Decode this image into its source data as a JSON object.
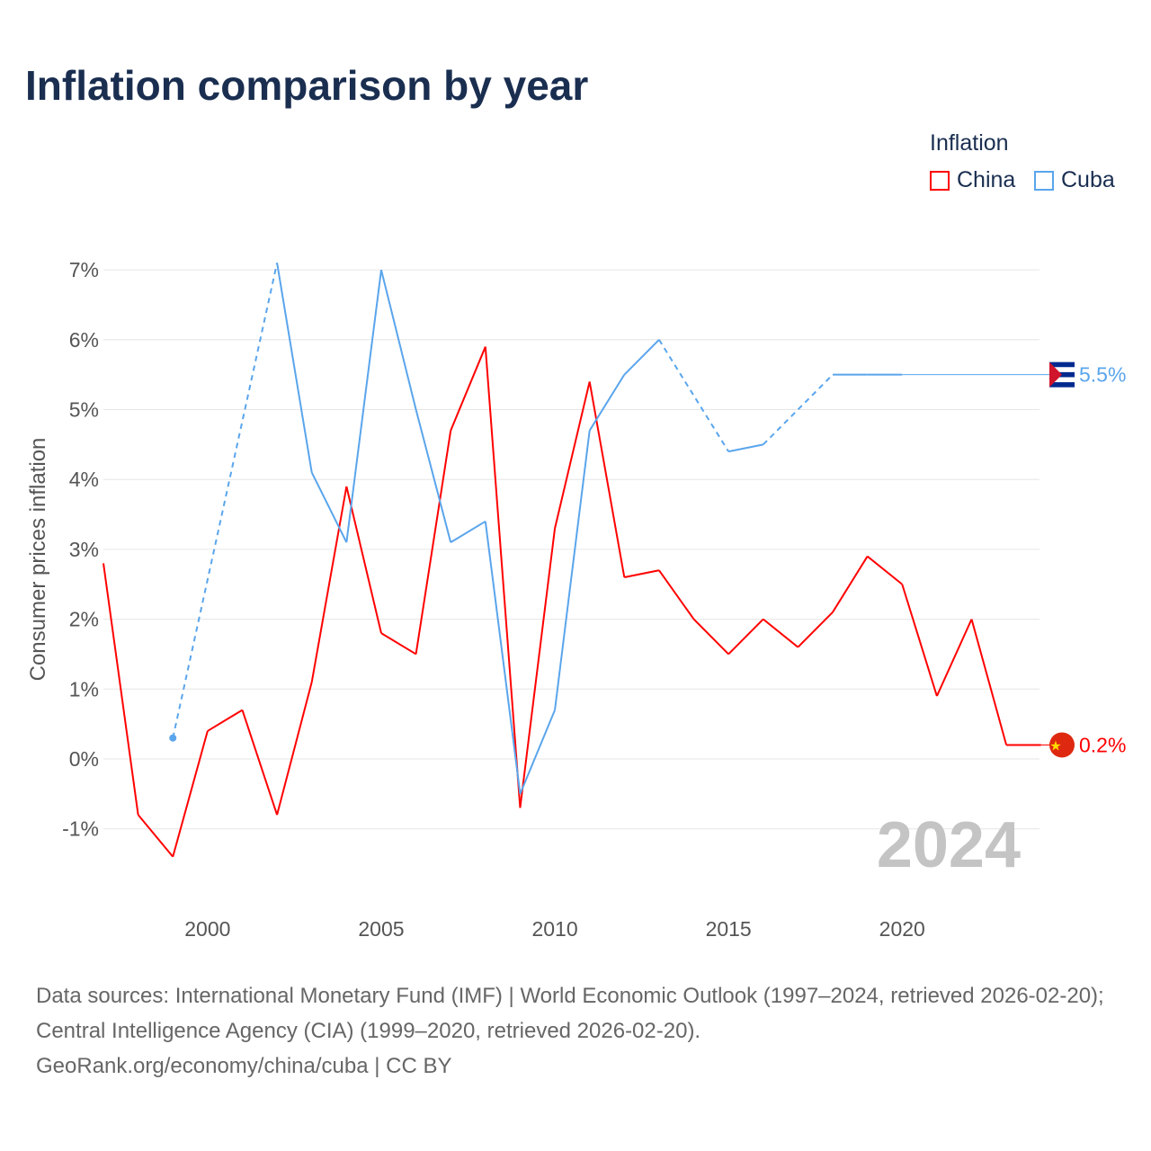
{
  "colors": {
    "China": "#ff0000",
    "Cuba": "#5aa5ec",
    "title": "#1a2e50"
  },
  "chart_data": {
    "type": "line",
    "title": "Inflation comparison by year",
    "xlabel": "",
    "ylabel": "Consumer prices inflation",
    "legend_title": "Inflation",
    "legend_position": "top-right",
    "year_label": "2024",
    "x": [
      1997,
      1998,
      1999,
      2000,
      2001,
      2002,
      2003,
      2004,
      2005,
      2006,
      2007,
      2008,
      2009,
      2010,
      2011,
      2012,
      2013,
      2014,
      2015,
      2016,
      2017,
      2018,
      2019,
      2020,
      2021,
      2022,
      2023,
      2024
    ],
    "series": [
      {
        "name": "China",
        "end_label": "0.2%",
        "values": [
          2.8,
          -0.8,
          -1.4,
          0.4,
          0.7,
          -0.8,
          1.1,
          3.9,
          1.8,
          1.5,
          4.7,
          5.9,
          -0.7,
          3.3,
          5.4,
          2.6,
          2.7,
          2.0,
          1.5,
          2.0,
          1.6,
          2.1,
          2.9,
          2.5,
          0.9,
          2.0,
          0.2,
          0.2
        ]
      },
      {
        "name": "Cuba",
        "end_label": "5.5%",
        "values": [
          null,
          null,
          0.3,
          null,
          null,
          7.1,
          4.1,
          3.1,
          7.0,
          5.0,
          3.1,
          3.4,
          -0.5,
          0.7,
          4.7,
          5.5,
          6.0,
          null,
          4.4,
          4.5,
          null,
          5.5,
          5.5,
          5.5,
          null,
          null,
          null,
          null
        ]
      }
    ],
    "xticks": [
      2000,
      2005,
      2010,
      2015,
      2020
    ],
    "yticks": [
      -1,
      0,
      1,
      2,
      3,
      4,
      5,
      6,
      7
    ],
    "ytick_labels": [
      "-1%",
      "0%",
      "1%",
      "2%",
      "3%",
      "4%",
      "5%",
      "6%",
      "7%"
    ],
    "xlim": [
      1997,
      2024
    ],
    "ylim": [
      -1.5,
      7
    ],
    "grid": true
  },
  "source": {
    "line1": "Data sources: International Monetary Fund (IMF) | World Economic Outlook (1997–2024, retrieved 2026-02-20); Central Intelligence Agency (CIA) (1999–2020, retrieved 2026-02-20).",
    "line2": "GeoRank.org/economy/china/cuba | CC BY"
  }
}
